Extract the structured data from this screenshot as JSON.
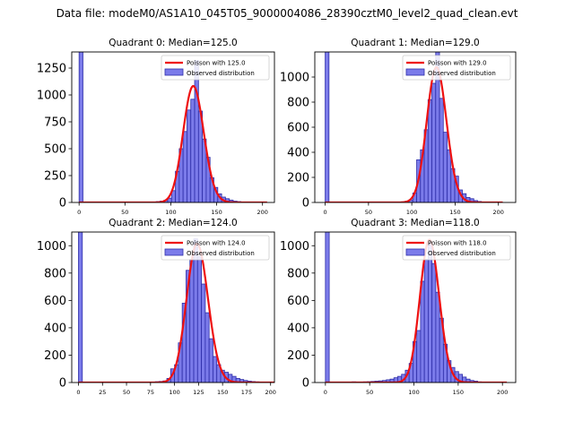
{
  "figure": {
    "suptitle": "Data file: modeM0/AS1A10_045T05_9000004086_28390cztM0_level2_quad_clean.evt",
    "bar_color": "#7b7bea",
    "bar_edge_color": "#2d2da8",
    "poisson_color": "#ee1111"
  },
  "chart_data": [
    {
      "type": "bar",
      "title": "Quadrant 0: Median=125.0",
      "median": 125.0,
      "legend": [
        "Poisson with 125.0",
        "Observed distribution"
      ],
      "legend_loc": "upper right",
      "xlim": [
        -8,
        213
      ],
      "ylim": [
        0,
        1400
      ],
      "xticks": [
        0,
        50,
        100,
        150,
        200
      ],
      "yticks": [
        0,
        250,
        500,
        750,
        1000,
        1250
      ],
      "bin_width": 4.2,
      "bins": [
        {
          "x": 0,
          "y": 1400
        },
        {
          "x": 79.8,
          "y": 5
        },
        {
          "x": 84,
          "y": 8
        },
        {
          "x": 88.2,
          "y": 12
        },
        {
          "x": 92.4,
          "y": 20
        },
        {
          "x": 96.6,
          "y": 40
        },
        {
          "x": 100.8,
          "y": 110
        },
        {
          "x": 105,
          "y": 290
        },
        {
          "x": 109.2,
          "y": 500
        },
        {
          "x": 113.4,
          "y": 660
        },
        {
          "x": 117.6,
          "y": 860
        },
        {
          "x": 121.8,
          "y": 960
        },
        {
          "x": 126,
          "y": 1320
        },
        {
          "x": 130.2,
          "y": 850
        },
        {
          "x": 134.4,
          "y": 590
        },
        {
          "x": 138.6,
          "y": 420
        },
        {
          "x": 142.8,
          "y": 230
        },
        {
          "x": 147,
          "y": 140
        },
        {
          "x": 151.2,
          "y": 80
        },
        {
          "x": 155.4,
          "y": 50
        },
        {
          "x": 159.6,
          "y": 35
        },
        {
          "x": 163.8,
          "y": 22
        },
        {
          "x": 168,
          "y": 12
        },
        {
          "x": 172.2,
          "y": 8
        },
        {
          "x": 176.4,
          "y": 4
        }
      ]
    },
    {
      "type": "bar",
      "title": "Quadrant 1: Median=129.0",
      "median": 129.0,
      "legend": [
        "Poisson with 129.0",
        "Observed distribution"
      ],
      "legend_loc": "upper right",
      "xlim": [
        -12,
        220
      ],
      "ylim": [
        0,
        1200
      ],
      "xticks": [
        0,
        50,
        100,
        150,
        200
      ],
      "yticks": [
        0,
        200,
        400,
        600,
        800,
        1000
      ],
      "bin_width": 4.4,
      "bins": [
        {
          "x": 0,
          "y": 1200
        },
        {
          "x": 88,
          "y": 5
        },
        {
          "x": 92.4,
          "y": 10
        },
        {
          "x": 96.8,
          "y": 20
        },
        {
          "x": 101.2,
          "y": 75
        },
        {
          "x": 105.6,
          "y": 340
        },
        {
          "x": 110,
          "y": 420
        },
        {
          "x": 114.4,
          "y": 580
        },
        {
          "x": 118.8,
          "y": 820
        },
        {
          "x": 123.2,
          "y": 950
        },
        {
          "x": 127.6,
          "y": 1200
        },
        {
          "x": 132,
          "y": 830
        },
        {
          "x": 136.4,
          "y": 560
        },
        {
          "x": 140.8,
          "y": 420
        },
        {
          "x": 145.2,
          "y": 270
        },
        {
          "x": 149.6,
          "y": 210
        },
        {
          "x": 154,
          "y": 100
        },
        {
          "x": 158.4,
          "y": 70
        },
        {
          "x": 162.8,
          "y": 40
        },
        {
          "x": 167.2,
          "y": 30
        },
        {
          "x": 171.6,
          "y": 15
        },
        {
          "x": 176,
          "y": 8
        },
        {
          "x": 180.4,
          "y": 4
        }
      ]
    },
    {
      "type": "bar",
      "title": "Quadrant 2: Median=124.0",
      "median": 124.0,
      "legend": [
        "Poisson with 124.0",
        "Observed distribution"
      ],
      "legend_loc": "upper right",
      "xlim": [
        -7,
        204
      ],
      "ylim": [
        0,
        1100
      ],
      "xticks": [
        0,
        25,
        50,
        75,
        100,
        125,
        150,
        175,
        200
      ],
      "yticks": [
        0,
        200,
        400,
        600,
        800,
        1000
      ],
      "bin_width": 4,
      "bins": [
        {
          "x": 0,
          "y": 1100
        },
        {
          "x": 76,
          "y": 4
        },
        {
          "x": 80,
          "y": 6
        },
        {
          "x": 84,
          "y": 8
        },
        {
          "x": 88,
          "y": 12
        },
        {
          "x": 92,
          "y": 30
        },
        {
          "x": 96,
          "y": 100
        },
        {
          "x": 100,
          "y": 130
        },
        {
          "x": 104,
          "y": 290
        },
        {
          "x": 108,
          "y": 580
        },
        {
          "x": 112,
          "y": 820
        },
        {
          "x": 116,
          "y": 900
        },
        {
          "x": 120,
          "y": 1050
        },
        {
          "x": 124,
          "y": 920
        },
        {
          "x": 128,
          "y": 720
        },
        {
          "x": 132,
          "y": 510
        },
        {
          "x": 136,
          "y": 320
        },
        {
          "x": 140,
          "y": 190
        },
        {
          "x": 144,
          "y": 130
        },
        {
          "x": 148,
          "y": 90
        },
        {
          "x": 152,
          "y": 75
        },
        {
          "x": 156,
          "y": 60
        },
        {
          "x": 160,
          "y": 45
        },
        {
          "x": 164,
          "y": 30
        },
        {
          "x": 168,
          "y": 22
        },
        {
          "x": 172,
          "y": 15
        },
        {
          "x": 176,
          "y": 10
        },
        {
          "x": 180,
          "y": 7
        },
        {
          "x": 184,
          "y": 5
        },
        {
          "x": 188,
          "y": 3
        }
      ]
    },
    {
      "type": "bar",
      "title": "Quadrant 3: Median=118.0",
      "median": 118.0,
      "legend": [
        "Poisson with 118.0",
        "Observed distribution"
      ],
      "legend_loc": "upper right",
      "xlim": [
        -12,
        215
      ],
      "ylim": [
        0,
        1100
      ],
      "xticks": [
        0,
        50,
        100,
        150,
        200
      ],
      "yticks": [
        0,
        200,
        400,
        600,
        800,
        1000
      ],
      "bin_width": 4.3,
      "bins": [
        {
          "x": 0,
          "y": 1100
        },
        {
          "x": 30.1,
          "y": 5
        },
        {
          "x": 34.4,
          "y": 3
        },
        {
          "x": 38.7,
          "y": 4
        },
        {
          "x": 43,
          "y": 5
        },
        {
          "x": 47.3,
          "y": 6
        },
        {
          "x": 51.6,
          "y": 8
        },
        {
          "x": 55.9,
          "y": 10
        },
        {
          "x": 60.2,
          "y": 12
        },
        {
          "x": 64.5,
          "y": 15
        },
        {
          "x": 68.8,
          "y": 20
        },
        {
          "x": 73.1,
          "y": 25
        },
        {
          "x": 77.4,
          "y": 35
        },
        {
          "x": 81.7,
          "y": 45
        },
        {
          "x": 86,
          "y": 60
        },
        {
          "x": 90.3,
          "y": 90
        },
        {
          "x": 94.6,
          "y": 140
        },
        {
          "x": 98.9,
          "y": 300
        },
        {
          "x": 103.2,
          "y": 380
        },
        {
          "x": 107.5,
          "y": 740
        },
        {
          "x": 111.8,
          "y": 900
        },
        {
          "x": 116.1,
          "y": 1020
        },
        {
          "x": 120.4,
          "y": 870
        },
        {
          "x": 124.7,
          "y": 660
        },
        {
          "x": 129,
          "y": 470
        },
        {
          "x": 133.3,
          "y": 280
        },
        {
          "x": 137.6,
          "y": 160
        },
        {
          "x": 141.9,
          "y": 110
        },
        {
          "x": 146.2,
          "y": 80
        },
        {
          "x": 150.5,
          "y": 60
        },
        {
          "x": 154.8,
          "y": 40
        },
        {
          "x": 159.1,
          "y": 25
        },
        {
          "x": 163.4,
          "y": 15
        },
        {
          "x": 167.7,
          "y": 10
        },
        {
          "x": 172,
          "y": 5
        }
      ]
    }
  ]
}
